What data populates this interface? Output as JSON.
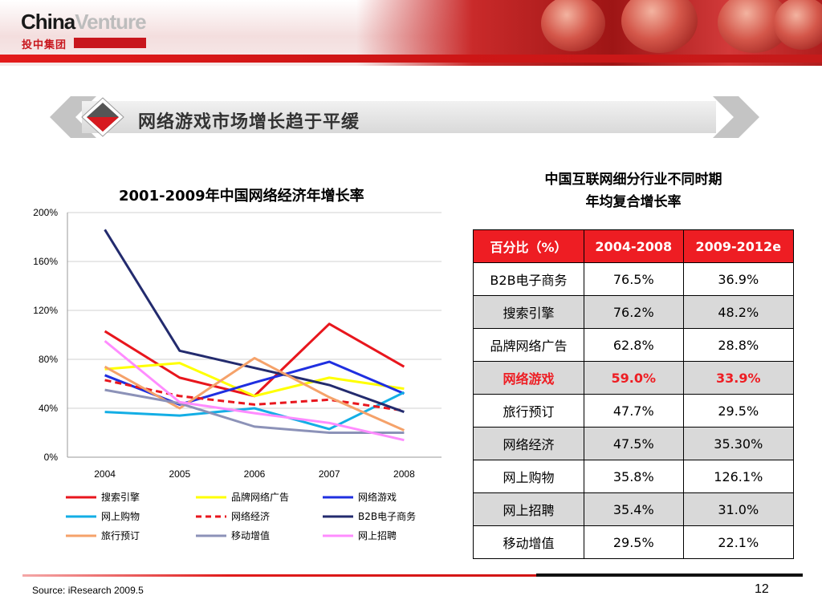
{
  "logo": {
    "brand_main": "China",
    "brand_accent": "Venture",
    "subtitle": "投中集团"
  },
  "slide": {
    "title": "网络游戏市场增长趋于平缓",
    "page_number": "12"
  },
  "source": "Source:  iResearch 2009.5",
  "chart_data": {
    "type": "line",
    "title": "2001-2009年中国网络经济年增长率",
    "xlabel": "",
    "ylabel": "",
    "categories": [
      "2004",
      "2005",
      "2006",
      "2007",
      "2008"
    ],
    "ylim": [
      0,
      200
    ],
    "yticks": [
      "0%",
      "40%",
      "80%",
      "120%",
      "160%",
      "200%"
    ],
    "grid": true,
    "legend_position": "bottom",
    "series": [
      {
        "name": "搜索引擎",
        "color": "#e8161d",
        "dashed": false,
        "values": [
          103,
          65,
          50,
          109,
          74
        ]
      },
      {
        "name": "品牌网络广告",
        "color": "#ffff00",
        "dashed": false,
        "values": [
          72,
          77,
          50,
          65,
          56
        ]
      },
      {
        "name": "网络游戏",
        "color": "#1f2fe0",
        "dashed": false,
        "values": [
          67,
          43,
          61,
          78,
          52
        ]
      },
      {
        "name": "网上购物",
        "color": "#13aee5",
        "dashed": false,
        "values": [
          37,
          34,
          40,
          23,
          53
        ]
      },
      {
        "name": "网络经济",
        "color": "#e8161d",
        "dashed": true,
        "values": [
          63,
          50,
          43,
          47,
          38
        ]
      },
      {
        "name": "B2B电子商务",
        "color": "#232b6e",
        "dashed": false,
        "values": [
          186,
          87,
          73,
          59,
          37
        ]
      },
      {
        "name": "旅行预订",
        "color": "#f5a26a",
        "dashed": false,
        "values": [
          74,
          40,
          81,
          49,
          22
        ]
      },
      {
        "name": "移动增值",
        "color": "#8c92b8",
        "dashed": false,
        "values": [
          55,
          44,
          25,
          20,
          20
        ]
      },
      {
        "name": "网上招聘",
        "color": "#ff8cff",
        "dashed": false,
        "values": [
          95,
          45,
          36,
          28,
          14
        ]
      }
    ]
  },
  "table": {
    "title_line1": "中国互联网细分行业不同时期",
    "title_line2": "年均复合增长率",
    "headers": [
      "百分比（%）",
      "2004-2008",
      "2009-2012e"
    ],
    "rows": [
      [
        "B2B电子商务",
        "76.5%",
        "36.9%"
      ],
      [
        "搜索引擎",
        "76.2%",
        "48.2%"
      ],
      [
        "品牌网络广告",
        "62.8%",
        "28.8%"
      ],
      [
        "网络游戏",
        "59.0%",
        "33.9%"
      ],
      [
        "旅行预订",
        "47.7%",
        "29.5%"
      ],
      [
        "网络经济",
        "47.5%",
        "35.30%"
      ],
      [
        "网上购物",
        "35.8%",
        "126.1%"
      ],
      [
        "网上招聘",
        "35.4%",
        "31.0%"
      ],
      [
        "移动增值",
        "29.5%",
        "22.1%"
      ]
    ]
  }
}
